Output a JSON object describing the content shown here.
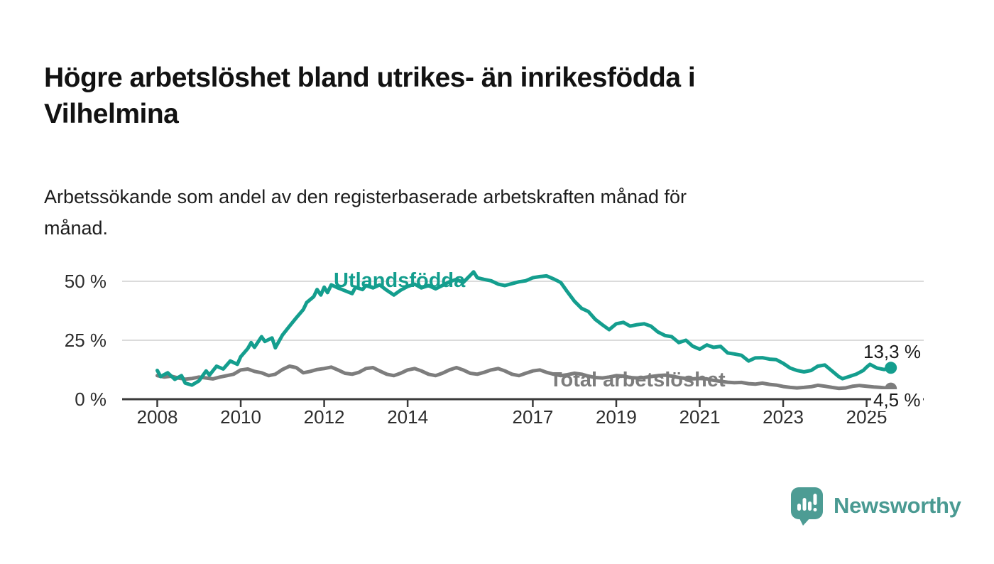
{
  "header": {
    "title_lines": [
      "Högre arbetslöshet bland utrikes- än inrikesfödda i",
      "Vilhelmina"
    ],
    "subtitle_lines": [
      "Arbetssökande som andel av den registerbaserade arbetskraften månad för",
      "månad."
    ]
  },
  "chart_data": {
    "type": "line",
    "title": "Högre arbetslöshet bland utrikes- än inrikesfödda i Vilhelmina",
    "subtitle": "Arbetssökande som andel av den registerbaserade arbetskraften månad för månad.",
    "unit": "%",
    "grid": true,
    "x_range": [
      2008,
      2025.7
    ],
    "ylim": [
      0,
      57
    ],
    "y_axis": {
      "ticks": [
        {
          "value": 0,
          "label": "0 %"
        },
        {
          "value": 25,
          "label": "25 %"
        },
        {
          "value": 50,
          "label": "50 %"
        }
      ]
    },
    "x_axis": {
      "ticks": [
        {
          "year": 2008,
          "label": "2008"
        },
        {
          "year": 2010,
          "label": "2010"
        },
        {
          "year": 2012,
          "label": "2012"
        },
        {
          "year": 2014,
          "label": "2014"
        },
        {
          "year": 2017,
          "label": "2017"
        },
        {
          "year": 2019,
          "label": "2019"
        },
        {
          "year": 2021,
          "label": "2021"
        },
        {
          "year": 2023,
          "label": "2023"
        },
        {
          "year": 2025,
          "label": "2025"
        }
      ]
    },
    "series": [
      {
        "name": "Total arbetslöshet",
        "color": "#7d7d7d",
        "end_label": "4,5 %",
        "last_value": 4.5,
        "points": [
          [
            2008.0,
            10.0
          ],
          [
            2008.17,
            9.4
          ],
          [
            2008.33,
            9.8
          ],
          [
            2008.5,
            9.0
          ],
          [
            2008.67,
            8.5
          ],
          [
            2008.83,
            8.8
          ],
          [
            2009.0,
            9.4
          ],
          [
            2009.17,
            9.0
          ],
          [
            2009.33,
            8.6
          ],
          [
            2009.5,
            9.4
          ],
          [
            2009.67,
            10.0
          ],
          [
            2009.83,
            10.6
          ],
          [
            2010.0,
            12.4
          ],
          [
            2010.17,
            12.8
          ],
          [
            2010.33,
            11.8
          ],
          [
            2010.5,
            11.2
          ],
          [
            2010.67,
            10.0
          ],
          [
            2010.83,
            10.6
          ],
          [
            2011.0,
            12.6
          ],
          [
            2011.17,
            14.0
          ],
          [
            2011.33,
            13.4
          ],
          [
            2011.5,
            11.2
          ],
          [
            2011.67,
            11.8
          ],
          [
            2011.83,
            12.6
          ],
          [
            2012.0,
            13.0
          ],
          [
            2012.17,
            13.6
          ],
          [
            2012.33,
            12.4
          ],
          [
            2012.5,
            11.0
          ],
          [
            2012.67,
            10.6
          ],
          [
            2012.83,
            11.4
          ],
          [
            2013.0,
            13.0
          ],
          [
            2013.17,
            13.4
          ],
          [
            2013.33,
            12.0
          ],
          [
            2013.5,
            10.6
          ],
          [
            2013.67,
            10.0
          ],
          [
            2013.83,
            11.0
          ],
          [
            2014.0,
            12.4
          ],
          [
            2014.17,
            13.0
          ],
          [
            2014.33,
            12.0
          ],
          [
            2014.5,
            10.6
          ],
          [
            2014.67,
            10.0
          ],
          [
            2014.83,
            11.0
          ],
          [
            2015.0,
            12.4
          ],
          [
            2015.17,
            13.4
          ],
          [
            2015.33,
            12.4
          ],
          [
            2015.5,
            11.0
          ],
          [
            2015.67,
            10.6
          ],
          [
            2015.83,
            11.4
          ],
          [
            2016.0,
            12.4
          ],
          [
            2016.17,
            13.0
          ],
          [
            2016.33,
            12.0
          ],
          [
            2016.5,
            10.6
          ],
          [
            2016.67,
            10.0
          ],
          [
            2016.83,
            11.0
          ],
          [
            2017.0,
            12.0
          ],
          [
            2017.17,
            12.4
          ],
          [
            2017.33,
            11.4
          ],
          [
            2017.5,
            10.6
          ],
          [
            2017.67,
            10.0
          ],
          [
            2017.83,
            10.4
          ],
          [
            2018.0,
            11.0
          ],
          [
            2018.17,
            10.6
          ],
          [
            2018.33,
            9.8
          ],
          [
            2018.5,
            9.2
          ],
          [
            2018.67,
            9.0
          ],
          [
            2018.83,
            9.4
          ],
          [
            2019.0,
            10.0
          ],
          [
            2019.17,
            9.8
          ],
          [
            2019.33,
            9.2
          ],
          [
            2019.5,
            9.0
          ],
          [
            2019.67,
            9.2
          ],
          [
            2019.83,
            9.6
          ],
          [
            2020.0,
            10.0
          ],
          [
            2020.17,
            10.2
          ],
          [
            2020.33,
            9.8
          ],
          [
            2020.5,
            9.2
          ],
          [
            2020.67,
            8.8
          ],
          [
            2020.83,
            8.6
          ],
          [
            2021.0,
            8.8
          ],
          [
            2021.17,
            8.6
          ],
          [
            2021.33,
            8.0
          ],
          [
            2021.5,
            7.6
          ],
          [
            2021.67,
            7.2
          ],
          [
            2021.83,
            7.0
          ],
          [
            2022.0,
            7.1
          ],
          [
            2022.17,
            6.6
          ],
          [
            2022.33,
            6.4
          ],
          [
            2022.5,
            6.8
          ],
          [
            2022.67,
            6.3
          ],
          [
            2022.83,
            6.0
          ],
          [
            2023.0,
            5.4
          ],
          [
            2023.17,
            5.0
          ],
          [
            2023.33,
            4.8
          ],
          [
            2023.5,
            5.0
          ],
          [
            2023.67,
            5.3
          ],
          [
            2023.83,
            5.9
          ],
          [
            2024.0,
            5.5
          ],
          [
            2024.17,
            5.0
          ],
          [
            2024.33,
            4.6
          ],
          [
            2024.5,
            4.8
          ],
          [
            2024.67,
            5.5
          ],
          [
            2024.83,
            5.8
          ],
          [
            2025.0,
            5.5
          ],
          [
            2025.17,
            5.2
          ],
          [
            2025.33,
            5.0
          ],
          [
            2025.58,
            4.5
          ]
        ]
      },
      {
        "name": "Utlandsfödda",
        "color": "#149e8e",
        "end_label": "13,3 %",
        "last_value": 13.3,
        "points": [
          [
            2008.0,
            12.2
          ],
          [
            2008.08,
            9.6
          ],
          [
            2008.25,
            11.2
          ],
          [
            2008.42,
            8.4
          ],
          [
            2008.58,
            10.0
          ],
          [
            2008.67,
            6.8
          ],
          [
            2008.83,
            6.0
          ],
          [
            2009.0,
            7.8
          ],
          [
            2009.17,
            12.0
          ],
          [
            2009.25,
            10.2
          ],
          [
            2009.42,
            14.0
          ],
          [
            2009.58,
            12.8
          ],
          [
            2009.75,
            16.2
          ],
          [
            2009.92,
            14.8
          ],
          [
            2010.0,
            18.0
          ],
          [
            2010.17,
            21.5
          ],
          [
            2010.25,
            24.0
          ],
          [
            2010.33,
            22.0
          ],
          [
            2010.5,
            26.5
          ],
          [
            2010.58,
            24.5
          ],
          [
            2010.75,
            26.0
          ],
          [
            2010.83,
            21.8
          ],
          [
            2011.0,
            27.2
          ],
          [
            2011.17,
            31.0
          ],
          [
            2011.33,
            34.5
          ],
          [
            2011.5,
            38.0
          ],
          [
            2011.58,
            41.0
          ],
          [
            2011.75,
            43.5
          ],
          [
            2011.83,
            46.5
          ],
          [
            2011.92,
            44.2
          ],
          [
            2012.0,
            47.5
          ],
          [
            2012.08,
            45.2
          ],
          [
            2012.17,
            48.5
          ],
          [
            2012.33,
            47.2
          ],
          [
            2012.5,
            46.0
          ],
          [
            2012.67,
            44.8
          ],
          [
            2012.75,
            47.5
          ],
          [
            2012.92,
            46.5
          ],
          [
            2013.0,
            48.2
          ],
          [
            2013.17,
            47.2
          ],
          [
            2013.33,
            48.5
          ],
          [
            2013.5,
            46.2
          ],
          [
            2013.67,
            44.2
          ],
          [
            2013.83,
            46.2
          ],
          [
            2014.0,
            47.8
          ],
          [
            2014.17,
            48.8
          ],
          [
            2014.33,
            47.2
          ],
          [
            2014.5,
            48.2
          ],
          [
            2014.67,
            46.8
          ],
          [
            2014.83,
            48.2
          ],
          [
            2015.0,
            49.8
          ],
          [
            2015.17,
            50.8
          ],
          [
            2015.33,
            49.5
          ],
          [
            2015.5,
            52.5
          ],
          [
            2015.58,
            54.0
          ],
          [
            2015.67,
            51.5
          ],
          [
            2015.83,
            50.8
          ],
          [
            2016.0,
            50.2
          ],
          [
            2016.17,
            48.8
          ],
          [
            2016.33,
            48.2
          ],
          [
            2016.5,
            49.0
          ],
          [
            2016.67,
            49.8
          ],
          [
            2016.83,
            50.2
          ],
          [
            2017.0,
            51.5
          ],
          [
            2017.17,
            52.0
          ],
          [
            2017.33,
            52.3
          ],
          [
            2017.5,
            51.0
          ],
          [
            2017.67,
            49.5
          ],
          [
            2017.83,
            45.5
          ],
          [
            2018.0,
            41.5
          ],
          [
            2018.17,
            38.5
          ],
          [
            2018.33,
            37.2
          ],
          [
            2018.5,
            33.8
          ],
          [
            2018.67,
            31.5
          ],
          [
            2018.83,
            29.5
          ],
          [
            2019.0,
            32.0
          ],
          [
            2019.17,
            32.6
          ],
          [
            2019.33,
            31.0
          ],
          [
            2019.5,
            31.6
          ],
          [
            2019.67,
            32.0
          ],
          [
            2019.83,
            31.0
          ],
          [
            2020.0,
            28.5
          ],
          [
            2020.17,
            27.0
          ],
          [
            2020.33,
            26.5
          ],
          [
            2020.5,
            24.0
          ],
          [
            2020.67,
            25.0
          ],
          [
            2020.83,
            22.5
          ],
          [
            2021.0,
            21.2
          ],
          [
            2021.17,
            23.0
          ],
          [
            2021.33,
            22.0
          ],
          [
            2021.5,
            22.4
          ],
          [
            2021.67,
            19.6
          ],
          [
            2021.83,
            19.2
          ],
          [
            2022.0,
            18.6
          ],
          [
            2022.17,
            16.2
          ],
          [
            2022.33,
            17.5
          ],
          [
            2022.5,
            17.6
          ],
          [
            2022.67,
            17.0
          ],
          [
            2022.83,
            16.8
          ],
          [
            2023.0,
            15.2
          ],
          [
            2023.17,
            13.2
          ],
          [
            2023.33,
            12.2
          ],
          [
            2023.5,
            11.6
          ],
          [
            2023.67,
            12.2
          ],
          [
            2023.83,
            14.0
          ],
          [
            2024.0,
            14.5
          ],
          [
            2024.17,
            12.0
          ],
          [
            2024.33,
            9.6
          ],
          [
            2024.42,
            8.7
          ],
          [
            2024.58,
            9.6
          ],
          [
            2024.75,
            10.6
          ],
          [
            2024.92,
            12.2
          ],
          [
            2025.0,
            13.6
          ],
          [
            2025.08,
            14.8
          ],
          [
            2025.25,
            13.2
          ],
          [
            2025.42,
            12.6
          ],
          [
            2025.58,
            13.3
          ]
        ]
      }
    ]
  },
  "footer": {
    "brand": "Newsworthy",
    "logo_icon": "newsworthy-speech-bubble-bar-chart-icon"
  },
  "colors": {
    "accent_teal": "#149e8e",
    "series_gray": "#7d7d7d",
    "axis": "#3a3a3a",
    "grid": "#dbdbdb",
    "logo_teal": "#4d9c94",
    "title_text": "#121212"
  }
}
